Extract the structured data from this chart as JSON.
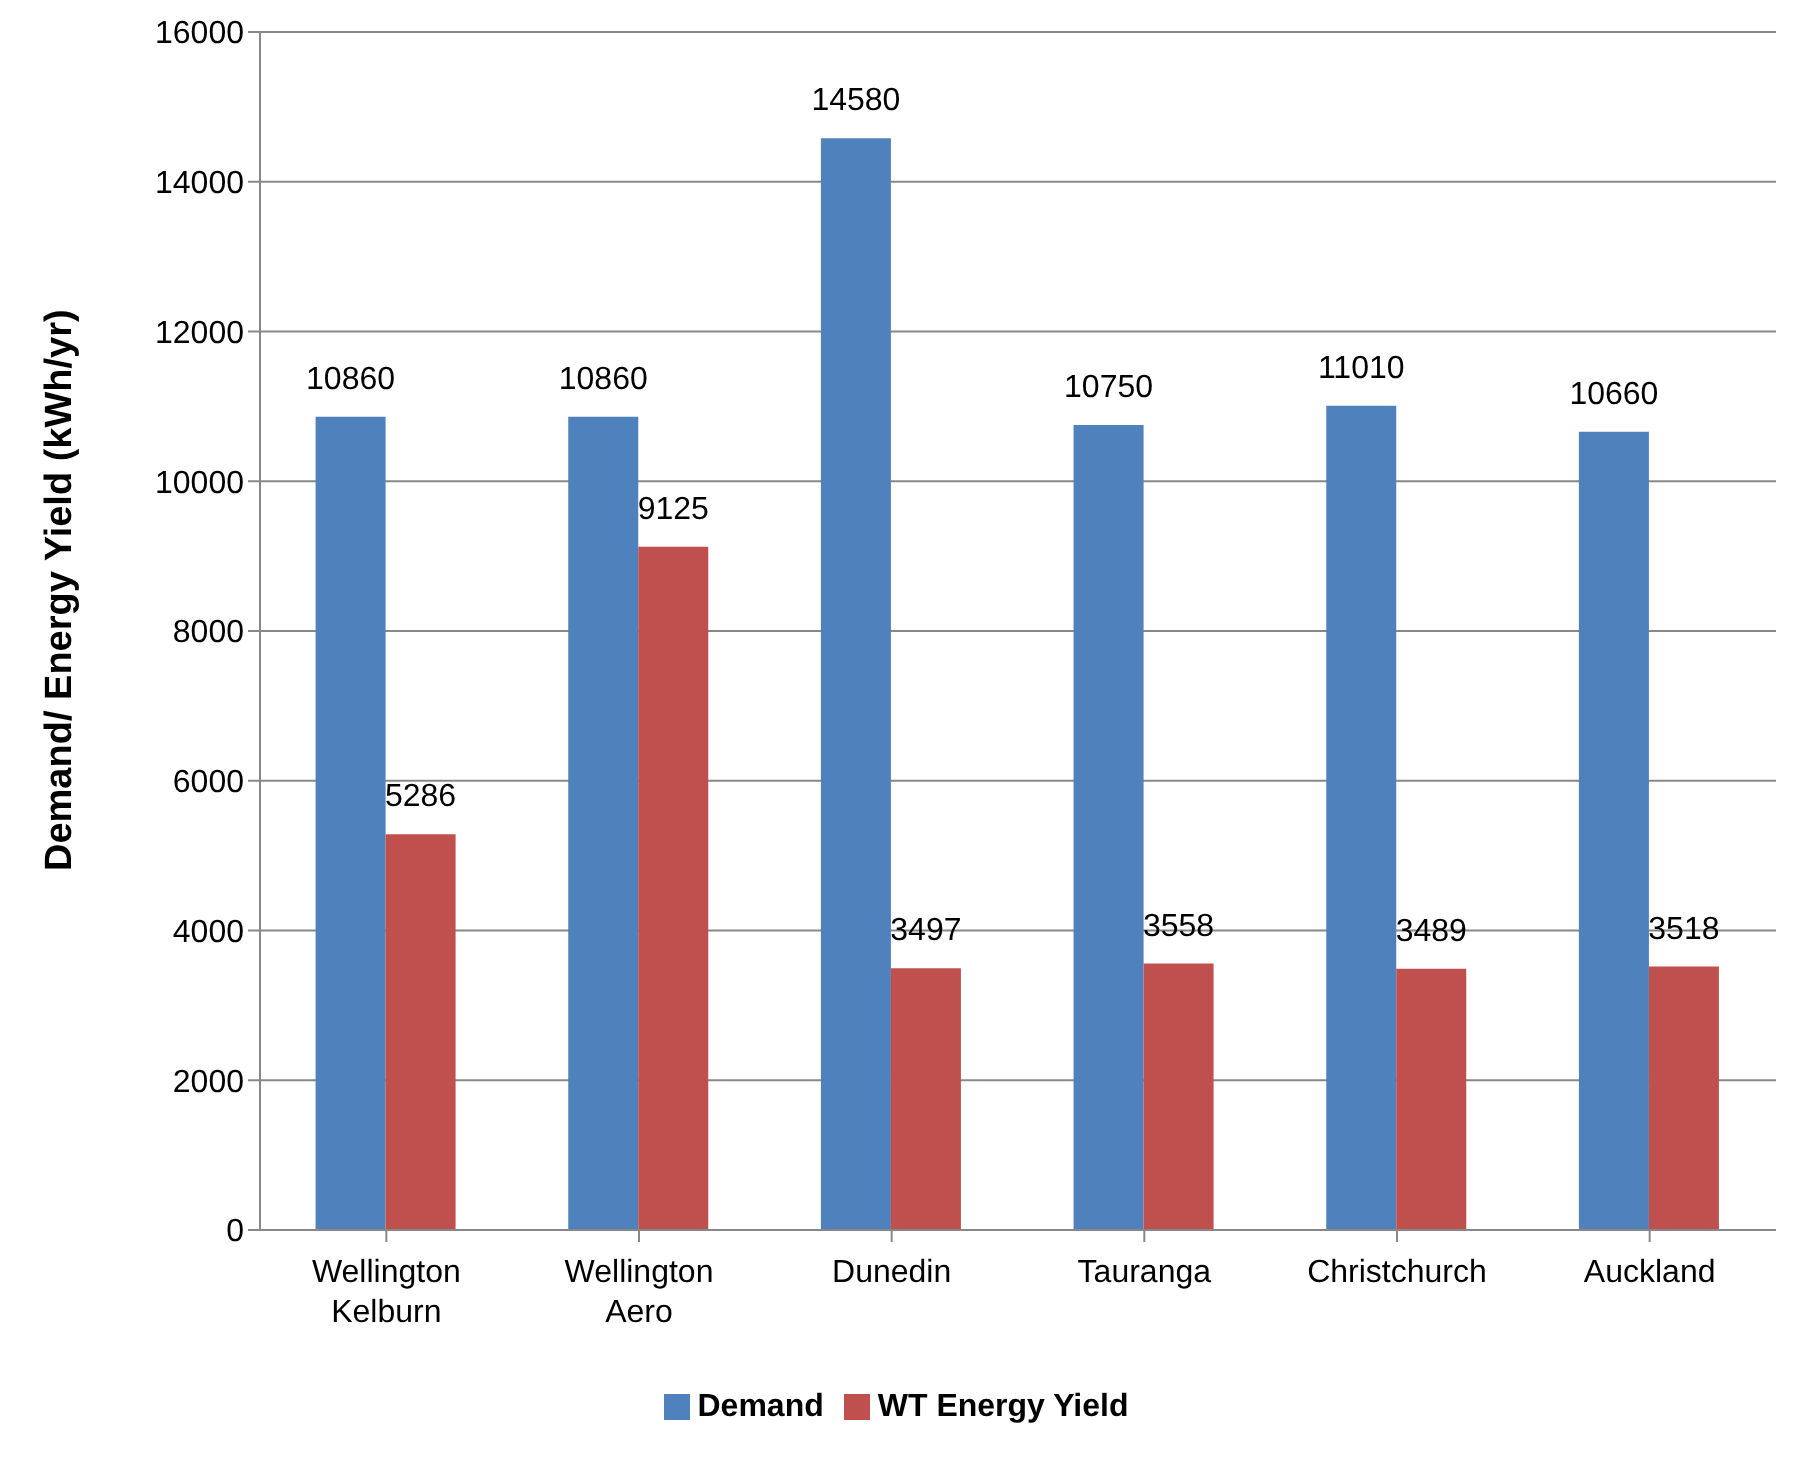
{
  "chart_data": {
    "type": "bar",
    "ylabel": "Demand/ Energy Yield (kWh/yr)",
    "categories": [
      "Wellington Kelburn",
      "Wellington Aero",
      "Dunedin",
      "Tauranga",
      "Christchurch",
      "Auckland"
    ],
    "series": [
      {
        "name": "Demand",
        "color": "#4f81bd",
        "values": [
          10860,
          10860,
          14580,
          10750,
          11010,
          10660
        ]
      },
      {
        "name": "WT Energy Yield",
        "color": "#c0504d",
        "values": [
          5286,
          9125,
          3497,
          3558,
          3489,
          3518
        ]
      }
    ],
    "ylim": [
      0,
      16000
    ],
    "yticks": [
      0,
      2000,
      4000,
      6000,
      8000,
      10000,
      12000,
      14000,
      16000
    ],
    "grid": "y",
    "legend": "bottom",
    "data_labels": true
  }
}
